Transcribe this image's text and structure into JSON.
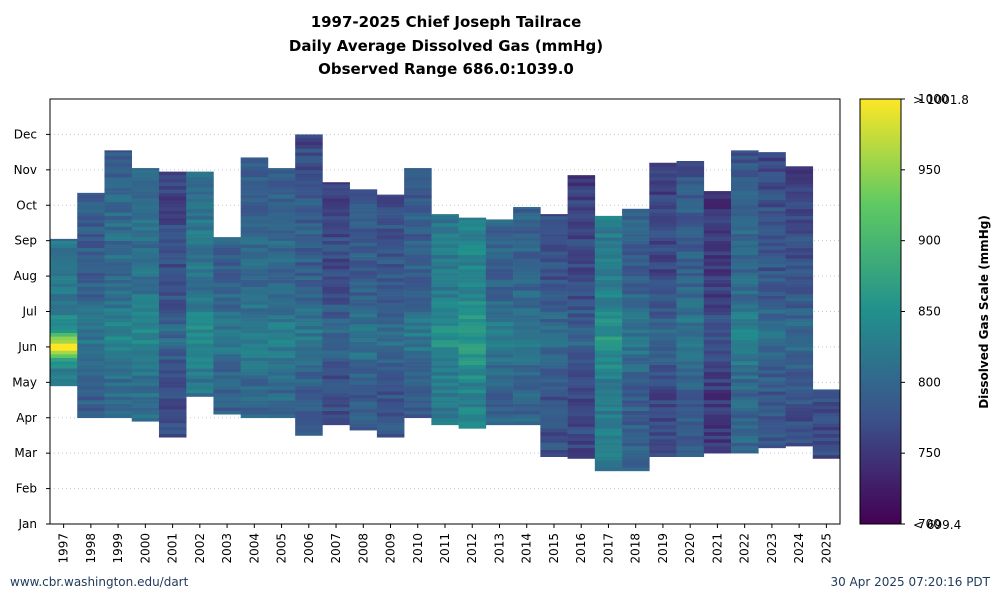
{
  "chart_data": {
    "type": "heatmap",
    "title": "1997-2025 Chief Joseph Tailrace",
    "subtitle_lines": [
      "Daily Average Dissolved Gas (mmHg)",
      "Observed Range 686.0:1039.0"
    ],
    "x_categories": [
      "1997",
      "1998",
      "1999",
      "2000",
      "2001",
      "2002",
      "2003",
      "2004",
      "2005",
      "2006",
      "2007",
      "2008",
      "2009",
      "2010",
      "2011",
      "2012",
      "2013",
      "2014",
      "2015",
      "2016",
      "2017",
      "2018",
      "2019",
      "2020",
      "2021",
      "2022",
      "2023",
      "2024",
      "2025"
    ],
    "y_ticks": [
      "Jan",
      "Feb",
      "Mar",
      "Apr",
      "May",
      "Jun",
      "Jul",
      "Aug",
      "Sep",
      "Oct",
      "Nov",
      "Dec"
    ],
    "y_range_month": [
      1,
      13
    ],
    "grid": true,
    "colorbar": {
      "label": "Dissolved Gas Scale (mmHg)",
      "min": 700,
      "max": 1000,
      "ticks": [
        700,
        750,
        800,
        850,
        900,
        950,
        1000
      ],
      "max_annotation": "> 1001.8",
      "min_annotation": "< 699.4",
      "colormap": "viridis"
    },
    "series": [
      {
        "year": "1997",
        "start": 9.05,
        "end": 4.9,
        "base": 815,
        "peak": {
          "center": 6.0,
          "width": 0.35,
          "amp": 155
        }
      },
      {
        "year": "1998",
        "start": 10.35,
        "end": 4.0,
        "base": 790
      },
      {
        "year": "1999",
        "start": 11.55,
        "end": 4.0,
        "base": 805
      },
      {
        "year": "2000",
        "start": 11.05,
        "end": 3.9,
        "base": 810
      },
      {
        "year": "2001",
        "start": 10.95,
        "end": 3.45,
        "base": 770
      },
      {
        "year": "2002",
        "start": 10.95,
        "end": 4.6,
        "base": 815
      },
      {
        "year": "2003",
        "start": 9.1,
        "end": 4.1,
        "base": 790
      },
      {
        "year": "2004",
        "start": 11.35,
        "end": 4.0,
        "base": 800
      },
      {
        "year": "2005",
        "start": 11.05,
        "end": 4.0,
        "base": 800
      },
      {
        "year": "2006",
        "start": 12.0,
        "end": 3.5,
        "base": 790
      },
      {
        "year": "2007",
        "start": 10.65,
        "end": 3.8,
        "base": 770
      },
      {
        "year": "2008",
        "start": 10.45,
        "end": 3.65,
        "base": 785
      },
      {
        "year": "2009",
        "start": 10.3,
        "end": 3.45,
        "base": 780
      },
      {
        "year": "2010",
        "start": 11.05,
        "end": 4.0,
        "base": 790
      },
      {
        "year": "2011",
        "start": 9.75,
        "end": 3.8,
        "base": 820
      },
      {
        "year": "2012",
        "start": 9.65,
        "end": 3.7,
        "base": 835
      },
      {
        "year": "2013",
        "start": 9.6,
        "end": 3.8,
        "base": 795
      },
      {
        "year": "2014",
        "start": 9.95,
        "end": 3.8,
        "base": 795
      },
      {
        "year": "2015",
        "start": 9.75,
        "end": 2.9,
        "base": 775
      },
      {
        "year": "2016",
        "start": 10.85,
        "end": 2.85,
        "base": 765
      },
      {
        "year": "2017",
        "start": 9.7,
        "end": 2.5,
        "base": 825
      },
      {
        "year": "2018",
        "start": 9.9,
        "end": 2.5,
        "base": 790
      },
      {
        "year": "2019",
        "start": 11.2,
        "end": 2.9,
        "base": 765
      },
      {
        "year": "2020",
        "start": 11.25,
        "end": 2.9,
        "base": 790
      },
      {
        "year": "2021",
        "start": 10.4,
        "end": 3.0,
        "base": 750
      },
      {
        "year": "2022",
        "start": 11.55,
        "end": 3.0,
        "base": 800
      },
      {
        "year": "2023",
        "start": 11.5,
        "end": 3.15,
        "base": 780
      },
      {
        "year": "2024",
        "start": 11.1,
        "end": 3.2,
        "base": 775
      },
      {
        "year": "2025",
        "start": 4.8,
        "end": 2.85,
        "base": 770
      }
    ]
  },
  "footer": {
    "left": "www.cbr.washington.edu/dart",
    "right": "30 Apr 2025 07:20:16 PDT"
  }
}
